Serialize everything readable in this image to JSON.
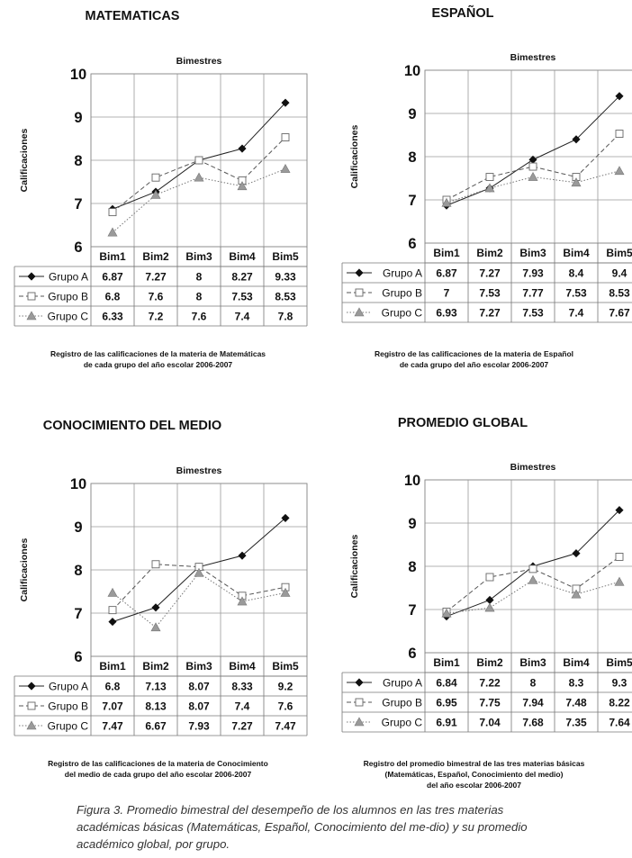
{
  "figure_caption": "Figura 3. Promedio bimestral del desempeño de los alumnos en las tres materias académicas básicas (Matemáticas, Español, Conocimiento del me-dio) y su promedio académico global, por grupo.",
  "chart_data": [
    {
      "type": "line",
      "title": "MATEMATICAS",
      "xlabel": "Bimestres",
      "ylabel": "Calificaciones",
      "ylim": [
        6,
        10
      ],
      "yticks": [
        "6",
        "7",
        "8",
        "9",
        "10"
      ],
      "categories": [
        "Bim1",
        "Bim2",
        "Bim3",
        "Bim4",
        "Bim5"
      ],
      "series": [
        {
          "name": "Grupo A",
          "values": [
            6.87,
            7.27,
            8,
            8.27,
            9.33
          ],
          "labels": [
            "6.87",
            "7.27",
            "8",
            "8.27",
            "9.33"
          ]
        },
        {
          "name": "Grupo B",
          "values": [
            6.8,
            7.6,
            8,
            7.53,
            8.53
          ],
          "labels": [
            "6.8",
            "7.6",
            "8",
            "7.53",
            "8.53"
          ]
        },
        {
          "name": "Grupo C",
          "values": [
            6.33,
            7.2,
            7.6,
            7.4,
            7.8
          ],
          "labels": [
            "6.33",
            "7.2",
            "7.6",
            "7.4",
            "7.8"
          ]
        }
      ],
      "caption": "Registro de las calificaciones de la materia de Matemáticas\nde cada grupo del año escolar 2006-2007"
    },
    {
      "type": "line",
      "title": "ESPAÑOL",
      "xlabel": "Bimestres",
      "ylabel": "Calificaciones",
      "ylim": [
        6,
        10
      ],
      "yticks": [
        "6",
        "7",
        "8",
        "9",
        "10"
      ],
      "categories": [
        "Bim1",
        "Bim2",
        "Bim3",
        "Bim4",
        "Bim5"
      ],
      "series": [
        {
          "name": "Grupo A",
          "values": [
            6.87,
            7.27,
            7.93,
            8.4,
            9.4
          ],
          "labels": [
            "6.87",
            "7.27",
            "7.93",
            "8.4",
            "9.4"
          ]
        },
        {
          "name": "Grupo B",
          "values": [
            7,
            7.53,
            7.77,
            7.53,
            8.53
          ],
          "labels": [
            "7",
            "7.53",
            "7.77",
            "7.53",
            "8.53"
          ]
        },
        {
          "name": "Grupo C",
          "values": [
            6.93,
            7.27,
            7.53,
            7.4,
            7.67
          ],
          "labels": [
            "6.93",
            "7.27",
            "7.53",
            "7.4",
            "7.67"
          ]
        }
      ],
      "caption": "Registro de las calificaciones de la materia de Español\nde cada grupo del año escolar 2006-2007"
    },
    {
      "type": "line",
      "title": "CONOCIMIENTO DEL MEDIO",
      "xlabel": "Bimestres",
      "ylabel": "Calificaciones",
      "ylim": [
        6,
        10
      ],
      "yticks": [
        "6",
        "7",
        "8",
        "9",
        "10"
      ],
      "categories": [
        "Bim1",
        "Bim2",
        "Bim3",
        "Bim4",
        "Bim5"
      ],
      "series": [
        {
          "name": "Grupo A",
          "values": [
            6.8,
            7.13,
            8.07,
            8.33,
            9.2
          ],
          "labels": [
            "6.8",
            "7.13",
            "8.07",
            "8.33",
            "9.2"
          ]
        },
        {
          "name": "Grupo B",
          "values": [
            7.07,
            8.13,
            8.07,
            7.4,
            7.6
          ],
          "labels": [
            "7.07",
            "8.13",
            "8.07",
            "7.4",
            "7.6"
          ]
        },
        {
          "name": "Grupo C",
          "values": [
            7.47,
            6.67,
            7.93,
            7.27,
            7.47
          ],
          "labels": [
            "7.47",
            "6.67",
            "7.93",
            "7.27",
            "7.47"
          ]
        }
      ],
      "caption": "Registro de las calificaciones de la materia de Conocimiento\ndel medio de cada grupo del año escolar 2006-2007"
    },
    {
      "type": "line",
      "title": "PROMEDIO GLOBAL",
      "xlabel": "Bimestres",
      "ylabel": "Calificaciones",
      "ylim": [
        6,
        10
      ],
      "yticks": [
        "6",
        "7",
        "8",
        "9",
        "10"
      ],
      "categories": [
        "Bim1",
        "Bim2",
        "Bim3",
        "Bim4",
        "Bim5"
      ],
      "series": [
        {
          "name": "Grupo A",
          "values": [
            6.84,
            7.22,
            8,
            8.3,
            9.3
          ],
          "labels": [
            "6.84",
            "7.22",
            "8",
            "8.3",
            "9.3"
          ]
        },
        {
          "name": "Grupo B",
          "values": [
            6.95,
            7.75,
            7.94,
            7.48,
            8.22
          ],
          "labels": [
            "6.95",
            "7.75",
            "7.94",
            "7.48",
            "8.22"
          ]
        },
        {
          "name": "Grupo C",
          "values": [
            6.91,
            7.04,
            7.68,
            7.35,
            7.64
          ],
          "labels": [
            "6.91",
            "7.04",
            "7.68",
            "7.35",
            "7.64"
          ]
        }
      ],
      "caption": "Registro del promedio bimestral de las tres materias básicas\n(Matemáticas, Español, Conocimiento del medio)\ndel año escolar 2006-2007"
    }
  ]
}
